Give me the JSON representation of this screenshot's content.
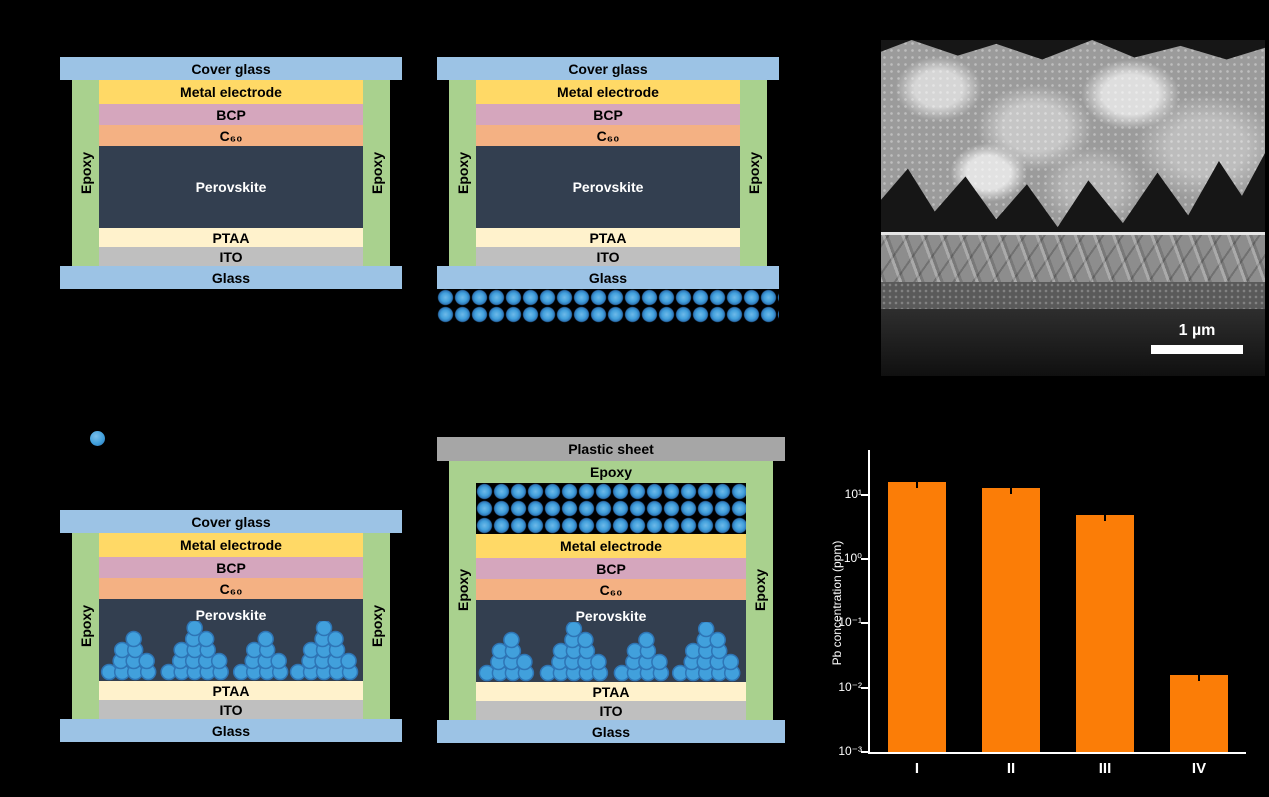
{
  "background": "#000000",
  "colors": {
    "glass": "#9CC3E5",
    "epoxy": "#A9D18E",
    "metal_electrode": "#FFD966",
    "bcp": "#D5A6BD",
    "c60": "#F4B183",
    "perovskite": "#333F50",
    "ptaa": "#FFF2CC",
    "ito": "#BFBFBF",
    "plastic_sheet": "#A6A6A6",
    "particle_fill": "#41A0DC",
    "particle_stroke": "#2E75B6",
    "bar_fill": "#FB7D07",
    "axis": "#FFFFFF"
  },
  "labels": {
    "cover_glass": "Cover glass",
    "metal_electrode": "Metal electrode",
    "bcp": "BCP",
    "c60": "C₆₀",
    "perovskite": "Perovskite",
    "ptaa": "PTAA",
    "ito": "ITO",
    "glass": "Glass",
    "epoxy": "Epoxy",
    "plastic_sheet": "Plastic sheet"
  },
  "sem": {
    "scale_bar_label": "1 µm"
  },
  "chart_data": {
    "type": "bar",
    "title": "",
    "categories": [
      "I",
      "II",
      "III",
      "IV"
    ],
    "values": [
      16,
      13,
      4.8,
      0.016
    ],
    "error_up": [
      3,
      1.5,
      0.8,
      0.004
    ],
    "xlabel": "",
    "ylabel": "Pb concentration (ppm)",
    "yscale": "log",
    "ylim": [
      0.001,
      50
    ],
    "ytick_values": [
      10,
      1,
      0.1,
      0.01,
      0.001
    ],
    "ytick_labels": [
      "10¹",
      "10⁰",
      "10⁻¹",
      "10⁻²",
      "10⁻³"
    ],
    "bar_color": "#FB7D07",
    "grid": false,
    "legend_position": "none"
  }
}
